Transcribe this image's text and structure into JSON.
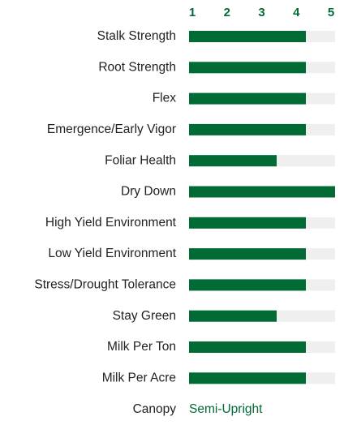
{
  "chart_data": {
    "type": "bar",
    "orientation": "horizontal",
    "categories": [
      "Stalk Strength",
      "Root Strength",
      "Flex",
      "Emergence/Early Vigor",
      "Foliar Health",
      "Dry Down",
      "High Yield Environment",
      "Low Yield Environment",
      "Stress/Drought Tolerance",
      "Stay Green",
      "Milk Per Ton",
      "Milk Per Acre"
    ],
    "values": [
      4,
      4,
      4,
      4,
      3,
      5,
      4,
      4,
      4,
      3,
      4,
      4
    ],
    "color": "#006b35",
    "track_color": "#efefef",
    "xlim": [
      0,
      5
    ],
    "xticks": [
      1,
      2,
      3,
      4,
      5
    ],
    "canopy": {
      "label": "Canopy",
      "value": "Semi-Upright"
    }
  }
}
